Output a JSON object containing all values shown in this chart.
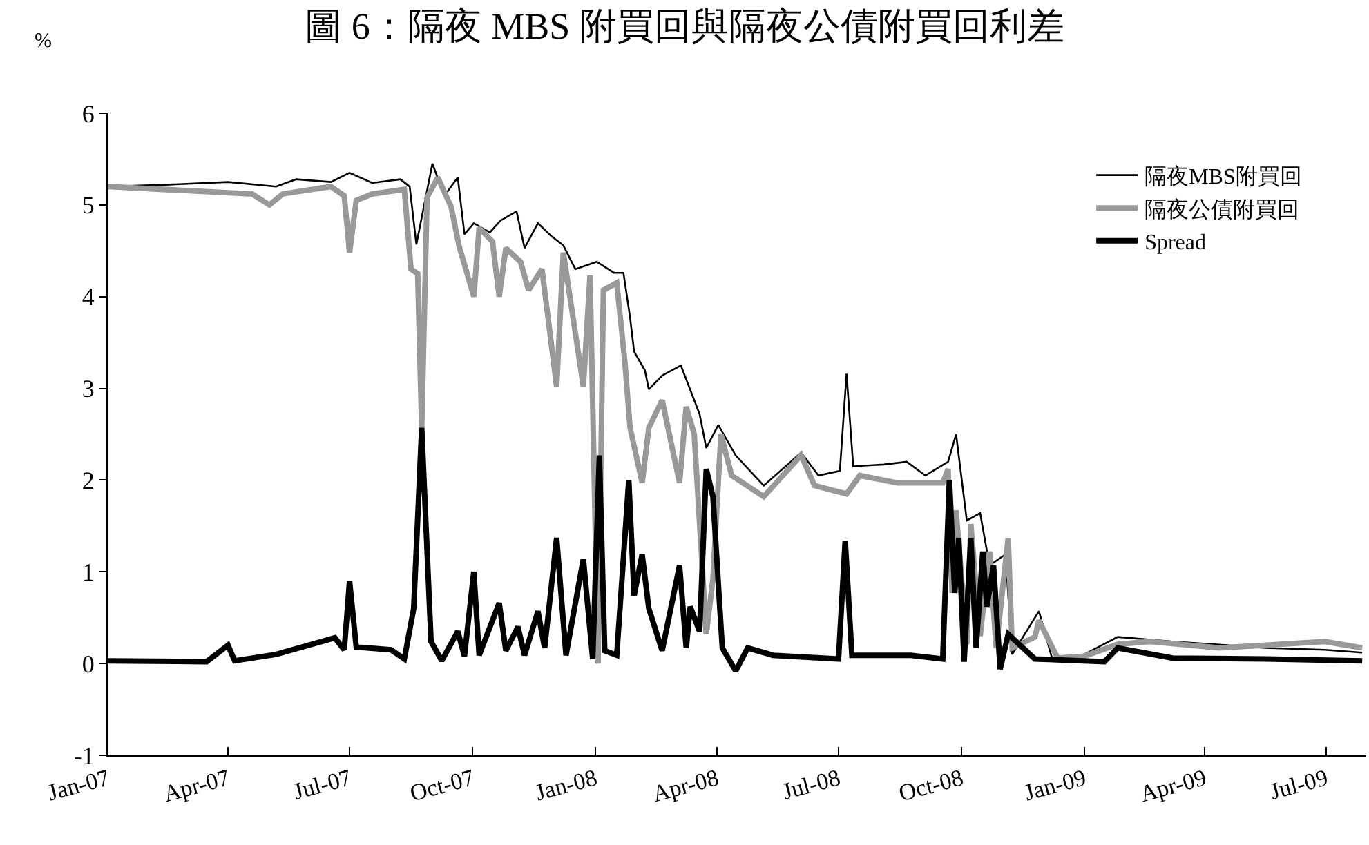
{
  "chart_data": {
    "type": "line",
    "title": "圖 6：隔夜 MBS 附買回與隔夜公債附買回利差",
    "ylabel": "%",
    "xlim": [
      "2007-01-01",
      "2009-07-31"
    ],
    "xticks": [
      {
        "value": "2007-01-01",
        "label": "Jan-07"
      },
      {
        "value": "2007-04-01",
        "label": "Apr-07"
      },
      {
        "value": "2007-07-01",
        "label": "Jul-07"
      },
      {
        "value": "2007-10-01",
        "label": "Oct-07"
      },
      {
        "value": "2008-01-01",
        "label": "Jan-08"
      },
      {
        "value": "2008-04-01",
        "label": "Apr-08"
      },
      {
        "value": "2008-07-01",
        "label": "Jul-08"
      },
      {
        "value": "2008-10-01",
        "label": "Oct-08"
      },
      {
        "value": "2009-01-01",
        "label": "Jan-09"
      },
      {
        "value": "2009-04-01",
        "label": "Apr-09"
      },
      {
        "value": "2009-07-01",
        "label": "Jul-09"
      }
    ],
    "ylim": [
      -1,
      6
    ],
    "yticks": [
      -1,
      0,
      1,
      2,
      3,
      4,
      5,
      6
    ],
    "legend": "top right",
    "marker": "none",
    "line_style": "solid",
    "series": [
      {
        "name": "隔夜MBS附買回",
        "color": "#000000",
        "x": [
          "2007-01-01",
          "2007-02-13",
          "2007-04-01",
          "2007-05-07",
          "2007-05-22",
          "2007-06-17",
          "2007-07-01",
          "2007-07-18",
          "2007-08-08",
          "2007-08-15",
          "2007-08-20",
          "2007-09-01",
          "2007-09-10",
          "2007-09-20",
          "2007-09-25",
          "2007-10-02",
          "2007-10-14",
          "2007-10-22",
          "2007-11-03",
          "2007-11-09",
          "2007-11-19",
          "2007-11-29",
          "2007-12-08",
          "2007-12-17",
          "2008-01-02",
          "2008-01-15",
          "2008-01-22",
          "2008-01-27",
          "2008-01-30",
          "2008-02-07",
          "2008-02-10",
          "2008-02-20",
          "2008-03-05",
          "2008-03-19",
          "2008-03-24",
          "2008-04-02",
          "2008-04-15",
          "2008-05-06",
          "2008-06-03",
          "2008-06-16",
          "2008-07-02",
          "2008-07-07",
          "2008-07-12",
          "2008-08-04",
          "2008-08-21",
          "2008-09-04",
          "2008-09-21",
          "2008-09-27",
          "2008-10-05",
          "2008-10-15",
          "2008-10-22",
          "2008-11-03",
          "2008-11-08",
          "2008-11-28",
          "2008-12-08",
          "2009-01-01",
          "2009-01-26",
          "2009-03-08",
          "2009-05-17",
          "2009-06-30",
          "2009-07-28"
        ],
        "values": [
          5.2,
          5.22,
          5.25,
          5.2,
          5.28,
          5.25,
          5.35,
          5.24,
          5.28,
          5.2,
          4.57,
          5.45,
          5.1,
          5.3,
          4.68,
          4.8,
          4.7,
          4.83,
          4.93,
          4.53,
          4.8,
          4.66,
          4.56,
          4.3,
          4.38,
          4.26,
          4.26,
          3.77,
          3.4,
          3.2,
          2.99,
          3.14,
          3.25,
          2.72,
          2.35,
          2.6,
          2.27,
          1.94,
          2.3,
          2.05,
          2.1,
          3.16,
          2.15,
          2.17,
          2.2,
          2.05,
          2.2,
          2.5,
          1.56,
          1.64,
          1.07,
          1.19,
          0.1,
          0.57,
          0.05,
          0.1,
          0.29,
          0.24,
          0.17,
          0.15,
          0.12
        ]
      },
      {
        "name": "隔夜公債附買回",
        "color": "#999999",
        "x": [
          "2007-01-01",
          "2007-04-19",
          "2007-05-02",
          "2007-05-12",
          "2007-06-17",
          "2007-06-27",
          "2007-07-01",
          "2007-07-06",
          "2007-07-18",
          "2007-08-11",
          "2007-08-16",
          "2007-08-21",
          "2007-08-24",
          "2007-08-28",
          "2007-09-05",
          "2007-09-15",
          "2007-09-21",
          "2007-10-02",
          "2007-10-06",
          "2007-10-16",
          "2007-10-21",
          "2007-10-26",
          "2007-11-06",
          "2007-11-12",
          "2007-11-22",
          "2007-12-03",
          "2007-12-08",
          "2007-12-23",
          "2007-12-28",
          "2008-01-03",
          "2008-01-07",
          "2008-01-17",
          "2008-01-23",
          "2008-01-27",
          "2008-02-05",
          "2008-02-10",
          "2008-02-20",
          "2008-03-04",
          "2008-03-09",
          "2008-03-15",
          "2008-03-24",
          "2008-03-29",
          "2008-04-04",
          "2008-04-12",
          "2008-05-06",
          "2008-06-03",
          "2008-06-13",
          "2008-07-07",
          "2008-07-17",
          "2008-08-14",
          "2008-09-17",
          "2008-09-21",
          "2008-09-24",
          "2008-09-27",
          "2008-10-05",
          "2008-10-08",
          "2008-10-15",
          "2008-10-22",
          "2008-10-27",
          "2008-11-05",
          "2008-11-08",
          "2008-11-25",
          "2008-11-28",
          "2008-12-12",
          "2009-01-01",
          "2009-01-26",
          "2009-02-19",
          "2009-04-12",
          "2009-05-17",
          "2009-06-30",
          "2009-07-28"
        ],
        "values": [
          5.2,
          5.12,
          5.0,
          5.12,
          5.2,
          5.1,
          4.48,
          5.05,
          5.12,
          5.17,
          4.3,
          4.25,
          2.57,
          5.08,
          5.3,
          4.98,
          4.55,
          4.0,
          4.75,
          4.6,
          4.0,
          4.53,
          4.38,
          4.07,
          4.3,
          3.02,
          4.48,
          3.02,
          4.23,
          0.0,
          4.07,
          4.15,
          3.3,
          2.57,
          1.97,
          2.57,
          2.87,
          1.97,
          2.8,
          2.5,
          0.32,
          0.92,
          2.5,
          2.05,
          1.82,
          2.27,
          1.94,
          1.85,
          2.05,
          1.97,
          1.97,
          2.12,
          0.77,
          1.67,
          0.21,
          1.52,
          0.3,
          1.22,
          0.17,
          1.37,
          0.17,
          0.29,
          0.47,
          0.06,
          0.08,
          0.21,
          0.24,
          0.17,
          0.2,
          0.24,
          0.17
        ]
      },
      {
        "name": "Spread",
        "color": "#000000",
        "x": [
          "2007-01-01",
          "2007-03-16",
          "2007-04-01",
          "2007-04-06",
          "2007-05-07",
          "2007-06-20",
          "2007-06-27",
          "2007-07-01",
          "2007-07-06",
          "2007-08-01",
          "2007-08-11",
          "2007-08-18",
          "2007-08-24",
          "2007-08-31",
          "2007-09-08",
          "2007-09-20",
          "2007-09-25",
          "2007-10-02",
          "2007-10-06",
          "2007-10-21",
          "2007-10-26",
          "2007-11-04",
          "2007-11-09",
          "2007-11-19",
          "2007-11-24",
          "2007-12-03",
          "2007-12-10",
          "2007-12-23",
          "2007-12-30",
          "2008-01-04",
          "2008-01-08",
          "2008-01-17",
          "2008-01-26",
          "2008-01-30",
          "2008-02-05",
          "2008-02-10",
          "2008-02-20",
          "2008-03-04",
          "2008-03-09",
          "2008-03-12",
          "2008-03-19",
          "2008-03-24",
          "2008-03-29",
          "2008-04-05",
          "2008-04-15",
          "2008-04-24",
          "2008-05-13",
          "2008-07-01",
          "2008-07-06",
          "2008-07-11",
          "2008-08-24",
          "2008-09-17",
          "2008-09-22",
          "2008-09-26",
          "2008-09-29",
          "2008-10-03",
          "2008-10-08",
          "2008-10-12",
          "2008-10-17",
          "2008-10-20",
          "2008-10-25",
          "2008-10-30",
          "2008-11-05",
          "2008-11-25",
          "2009-01-16",
          "2009-01-26",
          "2009-03-08",
          "2009-05-17",
          "2009-07-28"
        ],
        "values": [
          0.03,
          0.02,
          0.2,
          0.03,
          0.1,
          0.28,
          0.15,
          0.9,
          0.18,
          0.15,
          0.05,
          0.6,
          2.57,
          0.24,
          0.03,
          0.35,
          0.08,
          1.0,
          0.09,
          0.66,
          0.14,
          0.4,
          0.09,
          0.57,
          0.17,
          1.37,
          0.09,
          1.14,
          0.05,
          2.27,
          0.14,
          0.09,
          2.0,
          0.74,
          1.19,
          0.6,
          0.14,
          1.07,
          0.17,
          0.62,
          0.35,
          2.12,
          1.82,
          0.17,
          -0.08,
          0.17,
          0.09,
          0.05,
          1.34,
          0.09,
          0.09,
          0.05,
          2.0,
          0.77,
          1.37,
          0.02,
          1.37,
          0.17,
          1.22,
          0.62,
          1.07,
          -0.06,
          0.32,
          0.05,
          0.02,
          0.17,
          0.06,
          0.05,
          0.03
        ]
      }
    ]
  }
}
